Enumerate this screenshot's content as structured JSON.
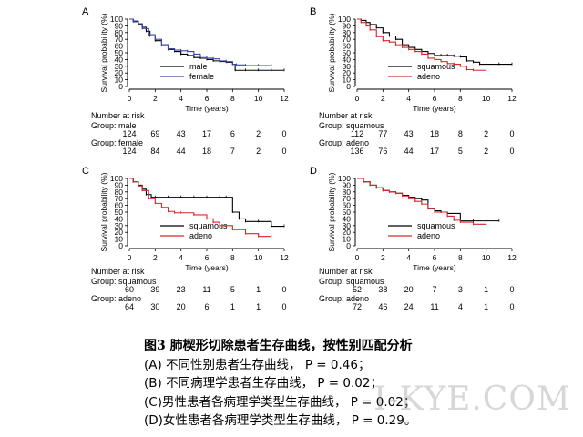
{
  "chart_data": [
    {
      "type": "line",
      "panel_label": "A",
      "ylabel": "Survival probability (%)",
      "xlabel": "Time (years)",
      "xlim": [
        0,
        12
      ],
      "ylim": [
        0,
        100
      ],
      "xticks": [
        "0",
        "2",
        "4",
        "6",
        "8",
        "10",
        "12"
      ],
      "yticks": [
        "0",
        "10",
        "20",
        "30",
        "40",
        "50",
        "60",
        "70",
        "80",
        "90",
        "100"
      ],
      "legend_position": "bottom-center",
      "series": [
        {
          "name": "male",
          "color": "#000000",
          "x": [
            0,
            0.3,
            0.7,
            1.0,
            1.3,
            1.6,
            2.0,
            2.5,
            3.0,
            3.5,
            4.0,
            4.5,
            5.0,
            5.5,
            6.0,
            6.5,
            7.0,
            7.5,
            8.0,
            8.2,
            9.0,
            10.0,
            11.0,
            12.0
          ],
          "y": [
            100,
            97,
            93,
            88,
            82,
            75,
            68,
            62,
            55,
            52,
            48,
            46,
            43,
            42,
            40,
            38,
            37,
            36,
            33,
            24,
            24,
            24,
            24,
            24
          ]
        },
        {
          "name": "female",
          "color": "#3a46b0",
          "x": [
            0,
            0.3,
            0.7,
            1.0,
            1.5,
            2.0,
            2.5,
            3.0,
            3.5,
            4.0,
            4.5,
            5.0,
            5.5,
            6.0,
            6.5,
            7.0,
            7.5,
            8.0,
            8.3,
            9.0,
            10.0,
            11.0
          ],
          "y": [
            100,
            96,
            92,
            86,
            77,
            70,
            62,
            56,
            54,
            53,
            52,
            48,
            45,
            42,
            41,
            38,
            37,
            33,
            32,
            31,
            31,
            31
          ]
        }
      ],
      "risk_table": {
        "heading": "Number at risk",
        "times": [
          0,
          2,
          4,
          6,
          8,
          10,
          12
        ],
        "groups": [
          {
            "label": "Group: male",
            "values": [
              "124",
              "69",
              "43",
              "17",
              "6",
              "2",
              "0"
            ]
          },
          {
            "label": "Group: female",
            "values": [
              "124",
              "84",
              "44",
              "18",
              "7",
              "2",
              "0"
            ]
          }
        ]
      }
    },
    {
      "type": "line",
      "panel_label": "B",
      "ylabel": "Survival probability (%)",
      "xlabel": "Time (years)",
      "xlim": [
        0,
        12
      ],
      "ylim": [
        0,
        100
      ],
      "xticks": [
        "0",
        "2",
        "4",
        "6",
        "8",
        "10",
        "12"
      ],
      "yticks": [
        "0",
        "10",
        "20",
        "30",
        "40",
        "50",
        "60",
        "70",
        "80",
        "90",
        "100"
      ],
      "legend_position": "bottom-center",
      "series": [
        {
          "name": "squamous",
          "color": "#000000",
          "x": [
            0,
            0.3,
            0.7,
            1.0,
            1.5,
            2.0,
            2.5,
            3.0,
            3.5,
            4.0,
            4.5,
            5.0,
            5.5,
            6.0,
            6.5,
            7.0,
            7.5,
            8.0,
            8.5,
            9.0,
            9.5,
            10.0,
            11.0,
            12.0
          ],
          "y": [
            100,
            98,
            95,
            92,
            87,
            80,
            75,
            70,
            62,
            58,
            55,
            52,
            49,
            46,
            46,
            46,
            45,
            44,
            38,
            36,
            33,
            33,
            33,
            33
          ]
        },
        {
          "name": "adeno",
          "color": "#d02a2a",
          "x": [
            0,
            0.3,
            0.7,
            1.0,
            1.5,
            2.0,
            2.5,
            3.0,
            3.5,
            4.0,
            4.5,
            5.0,
            5.5,
            6.0,
            6.5,
            7.0,
            7.5,
            8.0,
            8.5,
            9.0,
            10.0
          ],
          "y": [
            100,
            95,
            90,
            84,
            74,
            68,
            66,
            62,
            58,
            55,
            52,
            48,
            42,
            40,
            37,
            34,
            33,
            30,
            25,
            24,
            24
          ]
        }
      ],
      "risk_table": {
        "heading": "Number at risk",
        "times": [
          0,
          2,
          4,
          6,
          8,
          10,
          12
        ],
        "groups": [
          {
            "label": "Group: squamous",
            "values": [
              "112",
              "77",
              "43",
              "18",
              "8",
              "2",
              "0"
            ]
          },
          {
            "label": "Group: adeno",
            "values": [
              "136",
              "76",
              "44",
              "17",
              "5",
              "2",
              "0"
            ]
          }
        ]
      }
    },
    {
      "type": "line",
      "panel_label": "C",
      "ylabel": "Survival probability (%)",
      "xlabel": "Time (years)",
      "xlim": [
        0,
        12
      ],
      "ylim": [
        0,
        100
      ],
      "xticks": [
        "0",
        "2",
        "4",
        "6",
        "8",
        "10",
        "12"
      ],
      "yticks": [
        "0",
        "10",
        "20",
        "30",
        "40",
        "50",
        "60",
        "70",
        "80",
        "90",
        "100"
      ],
      "legend_position": "bottom-center",
      "series": [
        {
          "name": "squamous",
          "color": "#000000",
          "x": [
            0,
            0.3,
            0.7,
            1.0,
            1.3,
            1.7,
            2.0,
            3.0,
            4.0,
            5.0,
            6.0,
            7.0,
            7.5,
            8.0,
            8.5,
            9.0,
            10.0,
            11.0,
            12.0
          ],
          "y": [
            100,
            95,
            90,
            84,
            76,
            72,
            72,
            72,
            72,
            72,
            72,
            72,
            72,
            50,
            40,
            36,
            36,
            29,
            29
          ]
        },
        {
          "name": "adeno",
          "color": "#d02a2a",
          "x": [
            0,
            0.3,
            0.7,
            1.0,
            1.5,
            2.0,
            2.5,
            3.0,
            3.5,
            4.0,
            5.0,
            6.0,
            6.5,
            7.0,
            8.0,
            9.0,
            10.0,
            11.0
          ],
          "y": [
            100,
            95,
            89,
            82,
            70,
            63,
            57,
            51,
            49,
            49,
            46,
            40,
            35,
            30,
            24,
            18,
            14,
            14
          ]
        }
      ],
      "risk_table": {
        "heading": "Number at risk",
        "times": [
          0,
          2,
          4,
          6,
          8,
          10,
          12
        ],
        "groups": [
          {
            "label": "Group: squamous",
            "values": [
              "60",
              "39",
              "23",
              "11",
              "5",
              "1",
              "0"
            ]
          },
          {
            "label": "Group: adeno",
            "values": [
              "64",
              "30",
              "20",
              "6",
              "1",
              "1",
              "0"
            ]
          }
        ]
      }
    },
    {
      "type": "line",
      "panel_label": "D",
      "ylabel": "Survival probability (%)",
      "xlabel": "Time (years)",
      "xlim": [
        0,
        12
      ],
      "ylim": [
        0,
        100
      ],
      "xticks": [
        "0",
        "2",
        "4",
        "6",
        "8",
        "10",
        "12"
      ],
      "yticks": [
        "0",
        "10",
        "20",
        "30",
        "40",
        "50",
        "60",
        "70",
        "80",
        "90",
        "100"
      ],
      "legend_position": "bottom-center",
      "series": [
        {
          "name": "squamous",
          "color": "#000000",
          "x": [
            0,
            0.5,
            1.0,
            1.5,
            2.0,
            2.5,
            3.0,
            3.5,
            4.0,
            4.5,
            5.0,
            5.5,
            6.0,
            6.5,
            7.0,
            8.0,
            9.0,
            10.0,
            11.0
          ],
          "y": [
            100,
            95,
            90,
            86,
            82,
            80,
            78,
            75,
            72,
            70,
            68,
            55,
            52,
            50,
            48,
            37,
            37,
            37,
            37
          ]
        },
        {
          "name": "adeno",
          "color": "#d02a2a",
          "x": [
            0,
            0.5,
            1.0,
            1.5,
            2.0,
            2.5,
            3.0,
            3.5,
            4.0,
            4.5,
            5.0,
            5.5,
            6.0,
            7.0,
            7.5,
            8.0,
            9.0,
            10.0
          ],
          "y": [
            100,
            95,
            90,
            86,
            82,
            80,
            78,
            74,
            70,
            66,
            62,
            55,
            50,
            44,
            38,
            35,
            32,
            30
          ]
        }
      ],
      "risk_table": {
        "heading": "Number at risk",
        "times": [
          0,
          2,
          4,
          6,
          8,
          10,
          12
        ],
        "groups": [
          {
            "label": "Group: squamous",
            "values": [
              "52",
              "38",
              "20",
              "7",
              "3",
              "1",
              "0"
            ]
          },
          {
            "label": "Group: adeno",
            "values": [
              "72",
              "46",
              "24",
              "11",
              "4",
              "1",
              "0"
            ]
          }
        ]
      }
    }
  ],
  "caption": {
    "title": "图3 肺楔形切除患者生存曲线，按性别匹配分析",
    "lines": [
      "(A) 不同性别患者生存曲线，  P = 0.46；",
      "(B) 不同病理学患者生存曲线， P = 0.02；",
      "(C)男性患者各病理学类型生存曲线，  P = 0.02；",
      "(D)女性患者各病理学类型生存曲线，  P = 0.29。"
    ]
  },
  "watermark": "I-KYE.COM"
}
